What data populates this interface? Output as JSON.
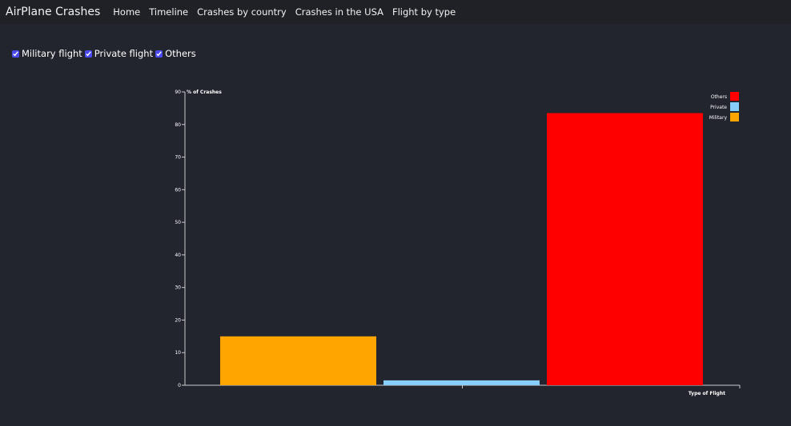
{
  "navbar": {
    "brand": "AirPlane Crashes",
    "links": [
      "Home",
      "Timeline",
      "Crashes by country",
      "Crashes in the USA",
      "Flight by type"
    ]
  },
  "filters": [
    {
      "label": "Military flight",
      "checked": true
    },
    {
      "label": "Private flight",
      "checked": true
    },
    {
      "label": "Others",
      "checked": true
    }
  ],
  "chart_data": {
    "type": "bar",
    "categories": [
      "Military",
      "Private",
      "Others"
    ],
    "values": [
      15,
      1.5,
      83.5
    ],
    "colors": [
      "#ffa500",
      "#87cefa",
      "#ff0000"
    ],
    "ylabel": "% of Crashes",
    "xlabel": "Type of Flight",
    "ylim": [
      0,
      90
    ],
    "yticks": [
      0,
      10,
      20,
      30,
      40,
      50,
      60,
      70,
      80,
      90
    ],
    "grid": false,
    "legend": {
      "placement": "top-right",
      "entries": [
        {
          "name": "Others",
          "color": "#ff0000"
        },
        {
          "name": "Private",
          "color": "#87cefa"
        },
        {
          "name": "Military",
          "color": "#ffa500"
        }
      ]
    }
  }
}
